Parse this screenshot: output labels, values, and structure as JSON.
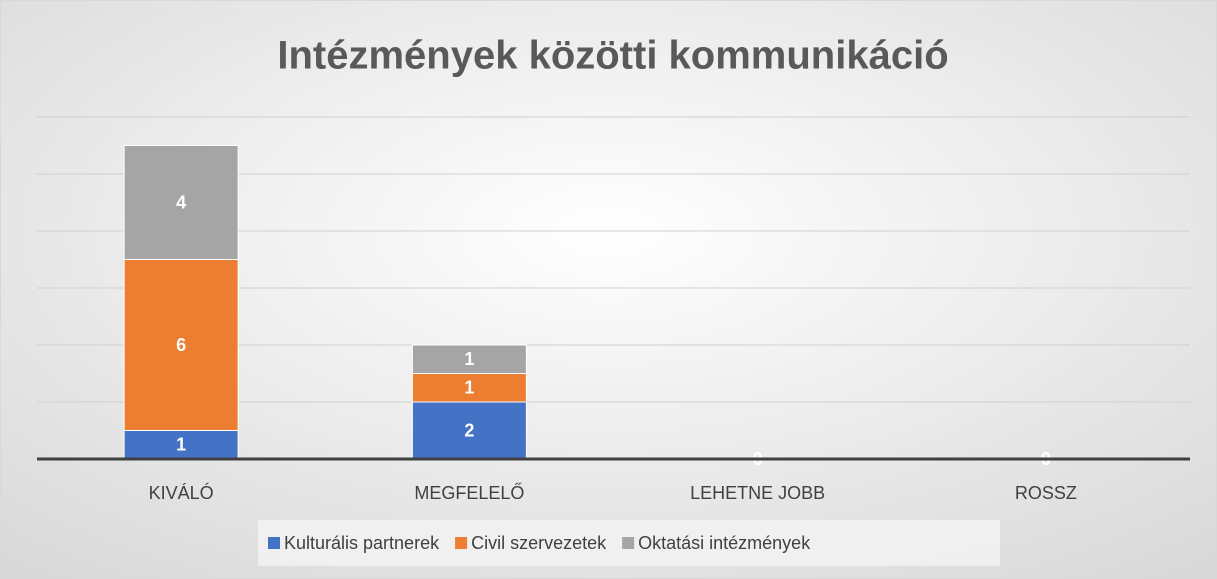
{
  "chart_data": {
    "type": "bar",
    "stacked": true,
    "title": "Intézmények közötti kommunikáció",
    "categories": [
      "KIVÁLÓ",
      "MEGFELELŐ",
      "LEHETNE JOBB",
      "ROSSZ"
    ],
    "series": [
      {
        "name": "Kulturális partnerek",
        "color": "#4472c4",
        "values": [
          1,
          2,
          0,
          0
        ]
      },
      {
        "name": "Civil szervezetek",
        "color": "#ed7d31",
        "values": [
          6,
          1,
          0,
          0
        ]
      },
      {
        "name": "Oktatási intézmények",
        "color": "#a5a5a5",
        "values": [
          4,
          1,
          0,
          0
        ]
      }
    ],
    "ylim": [
      0,
      12
    ],
    "yticks": [
      0,
      2,
      4,
      6,
      8,
      10,
      12
    ],
    "grid": true,
    "legend": "bottom"
  }
}
